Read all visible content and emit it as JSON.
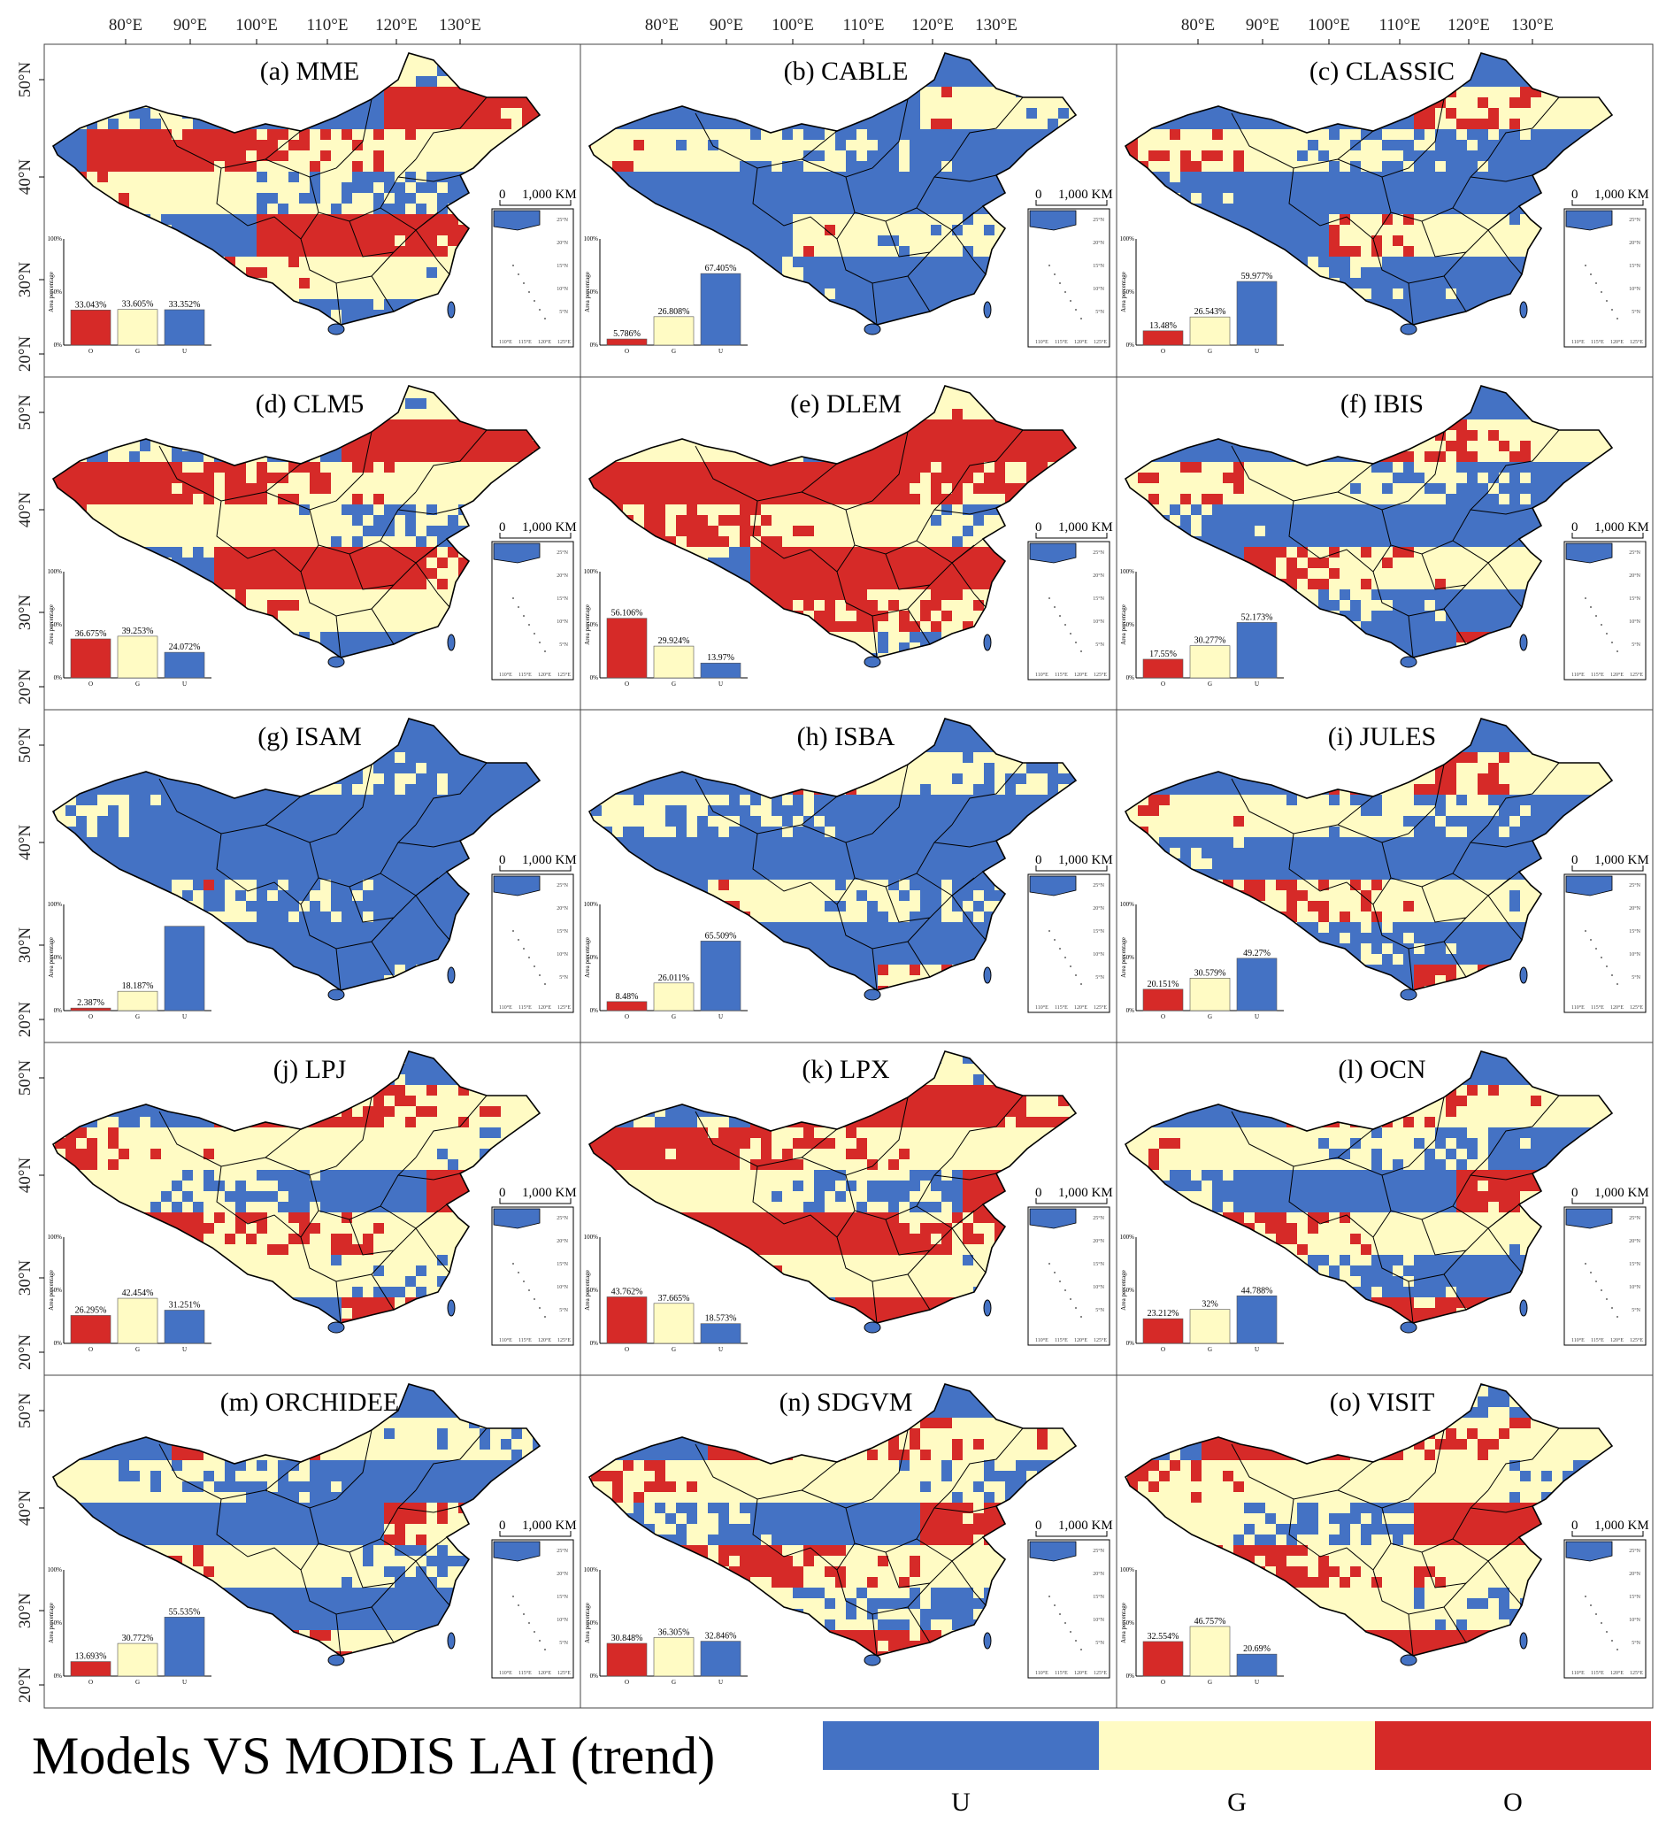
{
  "figure": {
    "footer_title": "Models VS MODIS LAI (trend)",
    "top_lon_ticks": [
      "80°E",
      "90°E",
      "100°E",
      "110°E",
      "120°E",
      "130°E"
    ],
    "left_lat_ticks": [
      "50°N",
      "40°N",
      "30°N",
      "20°N"
    ],
    "scale_bar": {
      "zero": "0",
      "label": "1,000 KM"
    },
    "inset_lon_ticks": [
      "110°E",
      "115°E",
      "120°E",
      "125°E"
    ],
    "inset_lat_ticks": [
      "25°N",
      "20°N",
      "15°N",
      "10°N",
      "5°N"
    ]
  },
  "legend": [
    {
      "key": "U",
      "label": "U",
      "color": "#4472c4"
    },
    {
      "key": "G",
      "label": "G",
      "color": "#fffbc4"
    },
    {
      "key": "O",
      "label": "O",
      "color": "#d62a28"
    }
  ],
  "colors": {
    "U": "#4472c4",
    "G": "#fffbc4",
    "O": "#d62a28",
    "border": "#000000"
  },
  "chart_data": [
    {
      "type": "bar",
      "panel": "(a) MME",
      "categories": [
        "O",
        "G",
        "U"
      ],
      "values": [
        33.043,
        33.605,
        33.352
      ],
      "value_labels": [
        "33.043%",
        "33.605%",
        "33.352%"
      ],
      "ylabel": "Area percentage",
      "yticks": [
        "0%",
        "50%",
        "100%"
      ],
      "ylim": [
        0,
        100
      ],
      "colors": [
        "#d62a28",
        "#fffbc4",
        "#4472c4"
      ]
    },
    {
      "type": "bar",
      "panel": "(b) CABLE",
      "categories": [
        "O",
        "G",
        "U"
      ],
      "values": [
        5.786,
        26.808,
        67.405
      ],
      "value_labels": [
        "5.786%",
        "26.808%",
        "67.405%"
      ],
      "ylabel": "Area percentage",
      "yticks": [
        "0%",
        "50%",
        "100%"
      ],
      "ylim": [
        0,
        100
      ],
      "colors": [
        "#d62a28",
        "#fffbc4",
        "#4472c4"
      ]
    },
    {
      "type": "bar",
      "panel": "(c) CLASSIC",
      "categories": [
        "O",
        "G",
        "U"
      ],
      "values": [
        13.48,
        26.543,
        59.977
      ],
      "value_labels": [
        "13.48%",
        "26.543%",
        "59.977%"
      ],
      "ylabel": "Area percentage",
      "yticks": [
        "0%",
        "50%",
        "100%"
      ],
      "ylim": [
        0,
        100
      ],
      "colors": [
        "#d62a28",
        "#fffbc4",
        "#4472c4"
      ]
    },
    {
      "type": "bar",
      "panel": "(d) CLM5",
      "categories": [
        "O",
        "G",
        "U"
      ],
      "values": [
        36.675,
        39.253,
        24.072
      ],
      "value_labels": [
        "36.675%",
        "39.253%",
        "24.072%"
      ],
      "ylabel": "Area percentage",
      "yticks": [
        "0%",
        "50%",
        "100%"
      ],
      "ylim": [
        0,
        100
      ],
      "colors": [
        "#d62a28",
        "#fffbc4",
        "#4472c4"
      ]
    },
    {
      "type": "bar",
      "panel": "(e) DLEM",
      "categories": [
        "O",
        "G",
        "U"
      ],
      "values": [
        56.106,
        29.924,
        13.97
      ],
      "value_labels": [
        "56.106%",
        "29.924%",
        "13.97%"
      ],
      "ylabel": "Area percentage",
      "yticks": [
        "0%",
        "50%",
        "100%"
      ],
      "ylim": [
        0,
        100
      ],
      "colors": [
        "#d62a28",
        "#fffbc4",
        "#4472c4"
      ]
    },
    {
      "type": "bar",
      "panel": "(f) IBIS",
      "categories": [
        "O",
        "G",
        "U"
      ],
      "values": [
        17.55,
        30.277,
        52.173
      ],
      "value_labels": [
        "17.55%",
        "30.277%",
        "52.173%"
      ],
      "ylabel": "Area percentage",
      "yticks": [
        "0%",
        "50%",
        "100%"
      ],
      "ylim": [
        0,
        100
      ],
      "colors": [
        "#d62a28",
        "#fffbc4",
        "#4472c4"
      ]
    },
    {
      "type": "bar",
      "panel": "(g) ISAM",
      "categories": [
        "O",
        "G",
        "U"
      ],
      "values": [
        2.387,
        18.187,
        79.426
      ],
      "value_labels": [
        "2.387%",
        "18.187%",
        ""
      ],
      "ylabel": "Area percentage",
      "yticks": [
        "0%",
        "50%",
        "100%"
      ],
      "ylim": [
        0,
        100
      ],
      "colors": [
        "#d62a28",
        "#fffbc4",
        "#4472c4"
      ]
    },
    {
      "type": "bar",
      "panel": "(h) ISBA",
      "categories": [
        "O",
        "G",
        "U"
      ],
      "values": [
        8.48,
        26.011,
        65.509
      ],
      "value_labels": [
        "8.48%",
        "26.011%",
        "65.509%"
      ],
      "ylabel": "Area percentage",
      "yticks": [
        "0%",
        "50%",
        "100%"
      ],
      "ylim": [
        0,
        100
      ],
      "colors": [
        "#d62a28",
        "#fffbc4",
        "#4472c4"
      ]
    },
    {
      "type": "bar",
      "panel": "(i) JULES",
      "categories": [
        "O",
        "G",
        "U"
      ],
      "values": [
        20.151,
        30.579,
        49.27
      ],
      "value_labels": [
        "20.151%",
        "30.579%",
        "49.27%"
      ],
      "ylabel": "Area percentage",
      "yticks": [
        "0%",
        "50%",
        "100%"
      ],
      "ylim": [
        0,
        100
      ],
      "colors": [
        "#d62a28",
        "#fffbc4",
        "#4472c4"
      ]
    },
    {
      "type": "bar",
      "panel": "(j) LPJ",
      "categories": [
        "O",
        "G",
        "U"
      ],
      "values": [
        26.295,
        42.454,
        31.251
      ],
      "value_labels": [
        "26.295%",
        "42.454%",
        "31.251%"
      ],
      "ylabel": "Area percentage",
      "yticks": [
        "0%",
        "50%",
        "100%"
      ],
      "ylim": [
        0,
        100
      ],
      "colors": [
        "#d62a28",
        "#fffbc4",
        "#4472c4"
      ]
    },
    {
      "type": "bar",
      "panel": "(k) LPX",
      "categories": [
        "O",
        "G",
        "U"
      ],
      "values": [
        43.762,
        37.665,
        18.573
      ],
      "value_labels": [
        "43.762%",
        "37.665%",
        "18.573%"
      ],
      "ylabel": "Area percentage",
      "yticks": [
        "0%",
        "50%",
        "100%"
      ],
      "ylim": [
        0,
        100
      ],
      "colors": [
        "#d62a28",
        "#fffbc4",
        "#4472c4"
      ]
    },
    {
      "type": "bar",
      "panel": "(l) OCN",
      "categories": [
        "O",
        "G",
        "U"
      ],
      "values": [
        23.212,
        32,
        44.788
      ],
      "value_labels": [
        "23.212%",
        "32%",
        "44.788%"
      ],
      "ylabel": "Area percentage",
      "yticks": [
        "0%",
        "50%",
        "100%"
      ],
      "ylim": [
        0,
        100
      ],
      "colors": [
        "#d62a28",
        "#fffbc4",
        "#4472c4"
      ]
    },
    {
      "type": "bar",
      "panel": "(m) ORCHIDEE",
      "categories": [
        "O",
        "G",
        "U"
      ],
      "values": [
        13.693,
        30.772,
        55.535
      ],
      "value_labels": [
        "13.693%",
        "30.772%",
        "55.535%"
      ],
      "ylabel": "Area percentage",
      "yticks": [
        "0%",
        "50%",
        "100%"
      ],
      "ylim": [
        0,
        100
      ],
      "colors": [
        "#d62a28",
        "#fffbc4",
        "#4472c4"
      ]
    },
    {
      "type": "bar",
      "panel": "(n) SDGVM",
      "categories": [
        "O",
        "G",
        "U"
      ],
      "values": [
        30.848,
        36.305,
        32.846
      ],
      "value_labels": [
        "30.848%",
        "36.305%",
        "32.846%"
      ],
      "ylabel": "Area percentage",
      "yticks": [
        "0%",
        "50%",
        "100%"
      ],
      "ylim": [
        0,
        100
      ],
      "colors": [
        "#d62a28",
        "#fffbc4",
        "#4472c4"
      ]
    },
    {
      "type": "bar",
      "panel": "(o) VISIT",
      "categories": [
        "O",
        "G",
        "U"
      ],
      "values": [
        32.554,
        46.757,
        20.69
      ],
      "value_labels": [
        "32.554%",
        "46.757%",
        "20.69%"
      ],
      "ylabel": "Area percentage",
      "yticks": [
        "0%",
        "50%",
        "100%"
      ],
      "ylim": [
        0,
        100
      ],
      "colors": [
        "#d62a28",
        "#fffbc4",
        "#4472c4"
      ]
    }
  ]
}
